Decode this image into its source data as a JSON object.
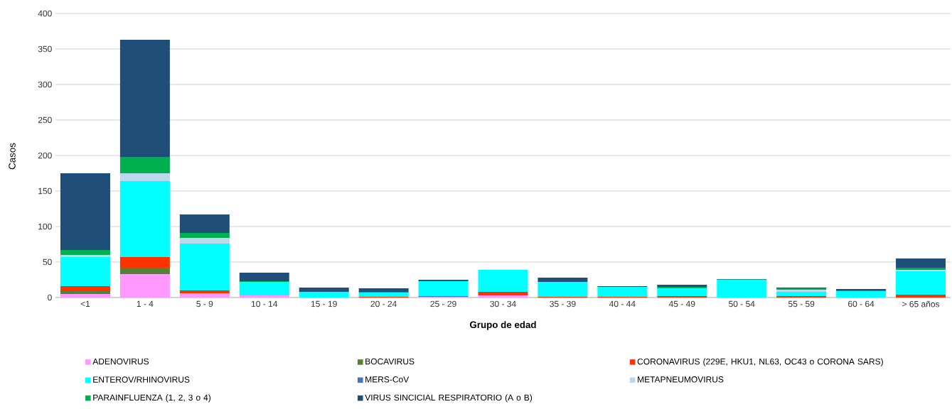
{
  "chart_data": {
    "type": "bar",
    "stacked": true,
    "xlabel": "Grupo de edad",
    "ylabel": "Casos",
    "categories": [
      "<1",
      "1 - 4",
      "5 - 9",
      "10 - 14",
      "15 - 19",
      "20 - 24",
      "25 - 29",
      "30 - 34",
      "35 - 39",
      "40 - 44",
      "45 - 49",
      "50 - 54",
      "55 - 59",
      "60 - 64",
      "> 65 años"
    ],
    "series": [
      {
        "name": "ADENOVIRUS",
        "color": "#ff99ff",
        "values": [
          5,
          33,
          6,
          3,
          0,
          0,
          1,
          3,
          0,
          0,
          0,
          0,
          0,
          0,
          null
        ]
      },
      {
        "name": "BOCAVIRUS",
        "color": "#548235",
        "values": [
          5,
          9,
          0,
          0,
          0,
          0,
          0,
          0,
          0,
          0,
          0,
          0,
          0,
          0,
          0
        ]
      },
      {
        "name": "CORONAVIRUS (229E, HKU1, NL63, OC43 o CORONA SARS)",
        "color": "#ff3300",
        "values": [
          6,
          15,
          4,
          0,
          0,
          1,
          1,
          5,
          1,
          1,
          2,
          0,
          2,
          0,
          4
        ]
      },
      {
        "name": "ENTEROV/RHINOVIRUS",
        "color": "#00ffff",
        "values": [
          41,
          107,
          66,
          19,
          8,
          6,
          21,
          31,
          21,
          14,
          11,
          25,
          6,
          9,
          33
        ]
      },
      {
        "name": "MERS-CoV",
        "color": "#4472c4",
        "values": [
          0,
          0,
          0,
          0,
          0,
          0,
          0,
          0,
          0,
          0,
          0,
          0,
          0,
          0,
          0
        ]
      },
      {
        "name": "METAPNEUMOVIRUS",
        "color": "#bdd7ee",
        "values": [
          3,
          11,
          8,
          0,
          0,
          0,
          null,
          0,
          0,
          0,
          0,
          0,
          3,
          0,
          2
        ]
      },
      {
        "name": "PARAINFLUENZA (1, 2, 3 o 4)",
        "color": "#00b050",
        "values": [
          7,
          23,
          7,
          1,
          0,
          1,
          0,
          0,
          0,
          0,
          2,
          1,
          2,
          1,
          3
        ]
      },
      {
        "name": "VIRUS SINCICIAL RESPIRATORIO (A o B)",
        "color": "#1f4e79",
        "values": [
          108,
          165,
          26,
          12,
          6,
          5,
          2,
          0,
          6,
          1,
          3,
          0,
          1,
          2,
          13
        ]
      }
    ],
    "ylim": [
      0,
      400
    ],
    "yticks": [
      0,
      50,
      100,
      150,
      200,
      250,
      300,
      350,
      400
    ],
    "grid": "y",
    "legend": "bottom"
  }
}
